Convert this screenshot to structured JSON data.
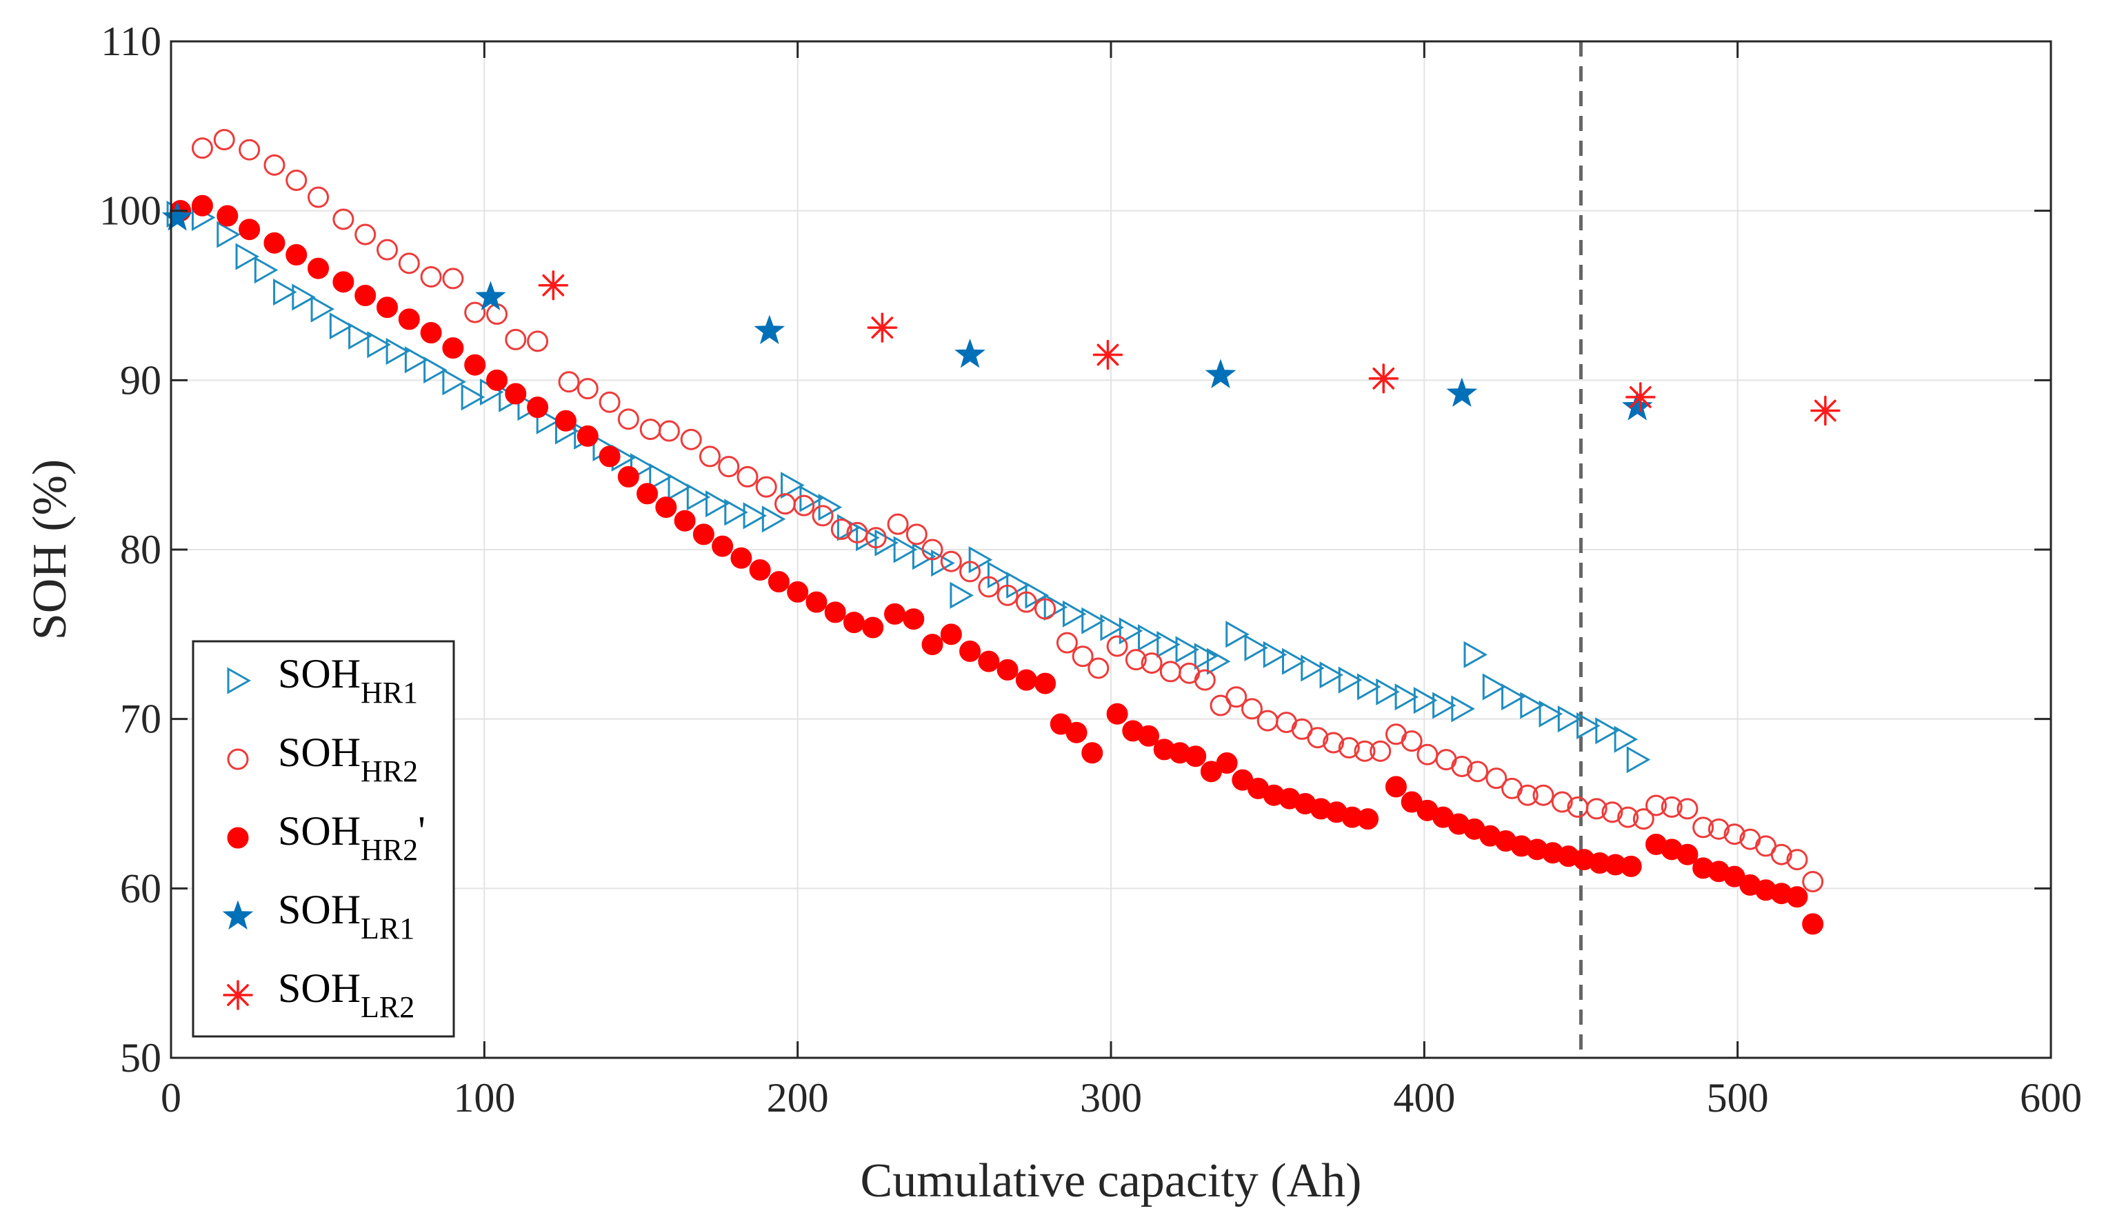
{
  "chart_data": {
    "type": "scatter",
    "xlabel": "Cumulative capacity (Ah)",
    "ylabel": "SOH (%)",
    "xlim": [
      0,
      600
    ],
    "ylim": [
      50,
      110
    ],
    "xticks": [
      0,
      100,
      200,
      300,
      400,
      500,
      600
    ],
    "yticks": [
      50,
      60,
      70,
      80,
      90,
      100,
      110
    ],
    "xtick_labels": [
      "0",
      "100",
      "200",
      "300",
      "400",
      "500",
      "600"
    ],
    "ytick_labels": [
      "50",
      "60",
      "70",
      "80",
      "90",
      "100",
      "110"
    ],
    "grid": true,
    "legend_position": "bottom-left",
    "reference_line": {
      "x": 450,
      "style": "dashed",
      "color": "#666666"
    },
    "series": [
      {
        "name": "SOH",
        "subscript": "HR1",
        "suffix": "",
        "marker": "triangle-right",
        "color": "#1f8dbf",
        "filled": false,
        "points": [
          [
            2,
            99.8
          ],
          [
            10,
            99.6
          ],
          [
            18,
            98.6
          ],
          [
            24,
            97.3
          ],
          [
            30,
            96.5
          ],
          [
            36,
            95.2
          ],
          [
            42,
            94.9
          ],
          [
            48,
            94.2
          ],
          [
            54,
            93.2
          ],
          [
            60,
            92.6
          ],
          [
            66,
            92.1
          ],
          [
            72,
            91.7
          ],
          [
            78,
            91.2
          ],
          [
            84,
            90.6
          ],
          [
            90,
            89.9
          ],
          [
            96,
            89.0
          ],
          [
            102,
            89.3
          ],
          [
            108,
            88.9
          ],
          [
            114,
            88.4
          ],
          [
            120,
            87.6
          ],
          [
            126,
            87.0
          ],
          [
            132,
            86.7
          ],
          [
            138,
            86.0
          ],
          [
            144,
            85.4
          ],
          [
            150,
            84.9
          ],
          [
            156,
            84.3
          ],
          [
            162,
            83.7
          ],
          [
            168,
            83.1
          ],
          [
            174,
            82.7
          ],
          [
            180,
            82.2
          ],
          [
            186,
            82.0
          ],
          [
            192,
            81.8
          ],
          [
            198,
            83.8
          ],
          [
            204,
            83.0
          ],
          [
            210,
            82.5
          ],
          [
            216,
            81.3
          ],
          [
            222,
            80.7
          ],
          [
            228,
            80.4
          ],
          [
            234,
            80.0
          ],
          [
            240,
            79.6
          ],
          [
            246,
            79.2
          ],
          [
            252,
            77.3
          ],
          [
            258,
            79.4
          ],
          [
            264,
            78.5
          ],
          [
            270,
            77.9
          ],
          [
            276,
            77.3
          ],
          [
            282,
            76.6
          ],
          [
            288,
            76.2
          ],
          [
            294,
            75.8
          ],
          [
            300,
            75.4
          ],
          [
            306,
            75.2
          ],
          [
            312,
            74.8
          ],
          [
            318,
            74.4
          ],
          [
            324,
            74.1
          ],
          [
            330,
            73.7
          ],
          [
            334,
            73.4
          ],
          [
            340,
            75.0
          ],
          [
            346,
            74.2
          ],
          [
            352,
            73.8
          ],
          [
            358,
            73.4
          ],
          [
            364,
            73.0
          ],
          [
            370,
            72.6
          ],
          [
            376,
            72.3
          ],
          [
            382,
            71.9
          ],
          [
            388,
            71.6
          ],
          [
            394,
            71.3
          ],
          [
            400,
            71.1
          ],
          [
            406,
            70.8
          ],
          [
            412,
            70.6
          ],
          [
            416,
            73.8
          ],
          [
            422,
            71.9
          ],
          [
            428,
            71.3
          ],
          [
            434,
            70.8
          ],
          [
            440,
            70.3
          ],
          [
            446,
            70.0
          ],
          [
            452,
            69.6
          ],
          [
            458,
            69.3
          ],
          [
            464,
            68.8
          ],
          [
            468,
            67.6
          ]
        ]
      },
      {
        "name": "SOH",
        "subscript": "HR2",
        "suffix": "",
        "marker": "circle",
        "color": "#ee3b3b",
        "filled": false,
        "points": [
          [
            3,
            100.0
          ],
          [
            10,
            103.7
          ],
          [
            17,
            104.2
          ],
          [
            25,
            103.6
          ],
          [
            33,
            102.7
          ],
          [
            40,
            101.8
          ],
          [
            47,
            100.8
          ],
          [
            55,
            99.5
          ],
          [
            62,
            98.6
          ],
          [
            69,
            97.7
          ],
          [
            76,
            96.9
          ],
          [
            83,
            96.1
          ],
          [
            90,
            96.0
          ],
          [
            97,
            94.0
          ],
          [
            104,
            93.9
          ],
          [
            110,
            92.4
          ],
          [
            117,
            92.3
          ],
          [
            127,
            89.9
          ],
          [
            133,
            89.5
          ],
          [
            140,
            88.7
          ],
          [
            146,
            87.7
          ],
          [
            153,
            87.1
          ],
          [
            159,
            87.0
          ],
          [
            166,
            86.5
          ],
          [
            172,
            85.5
          ],
          [
            178,
            84.9
          ],
          [
            184,
            84.3
          ],
          [
            190,
            83.7
          ],
          [
            196,
            82.7
          ],
          [
            202,
            82.6
          ],
          [
            208,
            82.0
          ],
          [
            214,
            81.2
          ],
          [
            219,
            81.0
          ],
          [
            225,
            80.7
          ],
          [
            232,
            81.5
          ],
          [
            238,
            80.9
          ],
          [
            243,
            80.0
          ],
          [
            249,
            79.3
          ],
          [
            255,
            78.7
          ],
          [
            261,
            77.8
          ],
          [
            267,
            77.3
          ],
          [
            273,
            76.9
          ],
          [
            279,
            76.5
          ],
          [
            286,
            74.5
          ],
          [
            291,
            73.7
          ],
          [
            296,
            73.0
          ],
          [
            302,
            74.3
          ],
          [
            308,
            73.5
          ],
          [
            313,
            73.3
          ],
          [
            319,
            72.8
          ],
          [
            325,
            72.7
          ],
          [
            330,
            72.3
          ],
          [
            335,
            70.8
          ],
          [
            340,
            71.3
          ],
          [
            345,
            70.6
          ],
          [
            350,
            69.9
          ],
          [
            356,
            69.8
          ],
          [
            361,
            69.4
          ],
          [
            366,
            68.9
          ],
          [
            371,
            68.6
          ],
          [
            376,
            68.3
          ],
          [
            381,
            68.1
          ],
          [
            386,
            68.1
          ],
          [
            391,
            69.1
          ],
          [
            396,
            68.7
          ],
          [
            401,
            67.9
          ],
          [
            407,
            67.6
          ],
          [
            412,
            67.2
          ],
          [
            417,
            66.9
          ],
          [
            423,
            66.5
          ],
          [
            428,
            65.9
          ],
          [
            433,
            65.5
          ],
          [
            438,
            65.5
          ],
          [
            444,
            65.1
          ],
          [
            449,
            64.8
          ],
          [
            455,
            64.7
          ],
          [
            460,
            64.5
          ],
          [
            465,
            64.2
          ],
          [
            470,
            64.1
          ],
          [
            474,
            64.9
          ],
          [
            479,
            64.8
          ],
          [
            484,
            64.7
          ],
          [
            489,
            63.6
          ],
          [
            494,
            63.5
          ],
          [
            499,
            63.2
          ],
          [
            504,
            62.9
          ],
          [
            509,
            62.5
          ],
          [
            514,
            62.0
          ],
          [
            519,
            61.7
          ],
          [
            524,
            60.4
          ]
        ]
      },
      {
        "name": "SOH",
        "subscript": "HR2",
        "suffix": "'",
        "marker": "filled-circle",
        "color": "#ff0000",
        "filled": true,
        "points": [
          [
            3,
            100.0
          ],
          [
            10,
            100.3
          ],
          [
            18,
            99.7
          ],
          [
            25,
            98.9
          ],
          [
            33,
            98.1
          ],
          [
            40,
            97.4
          ],
          [
            47,
            96.6
          ],
          [
            55,
            95.8
          ],
          [
            62,
            95.0
          ],
          [
            69,
            94.3
          ],
          [
            76,
            93.6
          ],
          [
            83,
            92.8
          ],
          [
            90,
            91.9
          ],
          [
            97,
            90.9
          ],
          [
            104,
            90.0
          ],
          [
            110,
            89.2
          ],
          [
            117,
            88.4
          ],
          [
            126,
            87.6
          ],
          [
            133,
            86.7
          ],
          [
            140,
            85.5
          ],
          [
            146,
            84.3
          ],
          [
            152,
            83.3
          ],
          [
            158,
            82.5
          ],
          [
            164,
            81.7
          ],
          [
            170,
            80.9
          ],
          [
            176,
            80.2
          ],
          [
            182,
            79.5
          ],
          [
            188,
            78.8
          ],
          [
            194,
            78.1
          ],
          [
            200,
            77.5
          ],
          [
            206,
            76.9
          ],
          [
            212,
            76.3
          ],
          [
            218,
            75.7
          ],
          [
            224,
            75.4
          ],
          [
            231,
            76.2
          ],
          [
            237,
            75.9
          ],
          [
            243,
            74.4
          ],
          [
            249,
            75.0
          ],
          [
            255,
            74.0
          ],
          [
            261,
            73.4
          ],
          [
            267,
            72.9
          ],
          [
            273,
            72.3
          ],
          [
            279,
            72.1
          ],
          [
            284,
            69.7
          ],
          [
            289,
            69.2
          ],
          [
            294,
            68.0
          ],
          [
            302,
            70.3
          ],
          [
            307,
            69.3
          ],
          [
            312,
            69.0
          ],
          [
            317,
            68.2
          ],
          [
            322,
            68.0
          ],
          [
            327,
            67.8
          ],
          [
            332,
            66.9
          ],
          [
            337,
            67.4
          ],
          [
            342,
            66.4
          ],
          [
            347,
            65.9
          ],
          [
            352,
            65.5
          ],
          [
            357,
            65.3
          ],
          [
            362,
            65.0
          ],
          [
            367,
            64.7
          ],
          [
            372,
            64.5
          ],
          [
            377,
            64.2
          ],
          [
            382,
            64.1
          ],
          [
            391,
            66.0
          ],
          [
            396,
            65.1
          ],
          [
            401,
            64.6
          ],
          [
            406,
            64.2
          ],
          [
            411,
            63.8
          ],
          [
            416,
            63.5
          ],
          [
            421,
            63.1
          ],
          [
            426,
            62.8
          ],
          [
            431,
            62.5
          ],
          [
            436,
            62.3
          ],
          [
            441,
            62.1
          ],
          [
            446,
            61.9
          ],
          [
            451,
            61.7
          ],
          [
            456,
            61.5
          ],
          [
            461,
            61.4
          ],
          [
            466,
            61.3
          ],
          [
            474,
            62.6
          ],
          [
            479,
            62.3
          ],
          [
            484,
            62.0
          ],
          [
            489,
            61.2
          ],
          [
            494,
            61.0
          ],
          [
            499,
            60.7
          ],
          [
            504,
            60.2
          ],
          [
            509,
            59.9
          ],
          [
            514,
            59.7
          ],
          [
            519,
            59.5
          ],
          [
            524,
            57.9
          ]
        ]
      },
      {
        "name": "SOH",
        "subscript": "LR1",
        "suffix": "",
        "marker": "star",
        "color": "#0070b8",
        "filled": true,
        "points": [
          [
            2,
            99.6
          ],
          [
            102,
            94.9
          ],
          [
            191,
            92.9
          ],
          [
            255,
            91.5
          ],
          [
            335,
            90.3
          ],
          [
            412,
            89.2
          ],
          [
            468,
            88.4
          ]
        ]
      },
      {
        "name": "SOH",
        "subscript": "LR2",
        "suffix": "",
        "marker": "asterisk",
        "color": "#ff1a1a",
        "filled": false,
        "points": [
          [
            122,
            95.6
          ],
          [
            227,
            93.1
          ],
          [
            299,
            91.5
          ],
          [
            387,
            90.1
          ],
          [
            469,
            89.0
          ],
          [
            528,
            88.2
          ]
        ]
      }
    ]
  }
}
